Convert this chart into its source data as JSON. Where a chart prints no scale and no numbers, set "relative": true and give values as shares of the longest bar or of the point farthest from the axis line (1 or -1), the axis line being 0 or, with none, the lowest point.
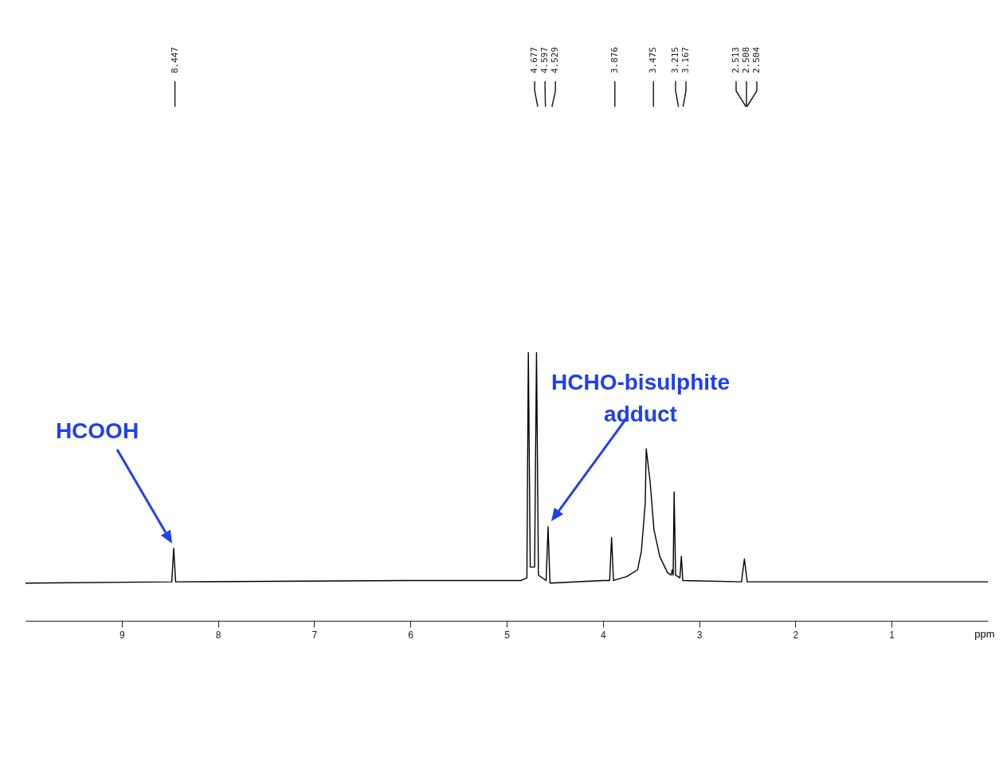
{
  "chart_data": {
    "type": "line",
    "relative": true,
    "xlabel": "ppm",
    "xlim": [
      10,
      0
    ],
    "xticks": [
      9,
      8,
      7,
      6,
      5,
      4,
      3,
      2,
      1
    ],
    "grid": false,
    "series": [
      {
        "color": "#000000",
        "x": [
          10,
          8.48,
          8.46,
          8.44,
          6,
          4.85,
          4.79,
          4.775,
          4.755,
          4.71,
          4.69,
          4.67,
          4.59,
          4.57,
          4.55,
          4.0,
          3.93,
          3.91,
          3.89,
          3.75,
          3.64,
          3.6,
          3.56,
          3.55,
          3.51,
          3.47,
          3.41,
          3.33,
          3.29,
          3.28,
          3.27,
          3.26,
          3.245,
          3.2,
          3.185,
          3.17,
          2.56,
          2.53,
          2.5,
          0
        ],
        "values": [
          0.14,
          0.145,
          0.27,
          0.145,
          0.15,
          0.15,
          0.16,
          1,
          0.2,
          0.2,
          1,
          0.17,
          0.15,
          0.35,
          0.14,
          0.15,
          0.15,
          0.31,
          0.15,
          0.165,
          0.19,
          0.26,
          0.44,
          0.64,
          0.52,
          0.34,
          0.24,
          0.18,
          0.17,
          0.19,
          0.17,
          0.48,
          0.17,
          0.16,
          0.24,
          0.15,
          0.145,
          0.23,
          0.145,
          0.145
        ]
      }
    ],
    "annotations": [
      {
        "text": "8.447",
        "x": 8.447
      },
      {
        "text": "4.677",
        "x": 4.677
      },
      {
        "text": "4.597",
        "x": 4.597
      },
      {
        "text": "4.529",
        "x": 4.529
      },
      {
        "text": "3.876",
        "x": 3.876
      },
      {
        "text": "3.475",
        "x": 3.475
      },
      {
        "text": "3.215",
        "x": 3.215
      },
      {
        "text": "3.167",
        "x": 3.167
      },
      {
        "text": "2.513",
        "x": 2.513
      },
      {
        "text": "2.508",
        "x": 2.508
      },
      {
        "text": "2.504",
        "x": 2.504
      },
      "HCOOH",
      "HCHO-bisulphite adduct"
    ]
  }
}
